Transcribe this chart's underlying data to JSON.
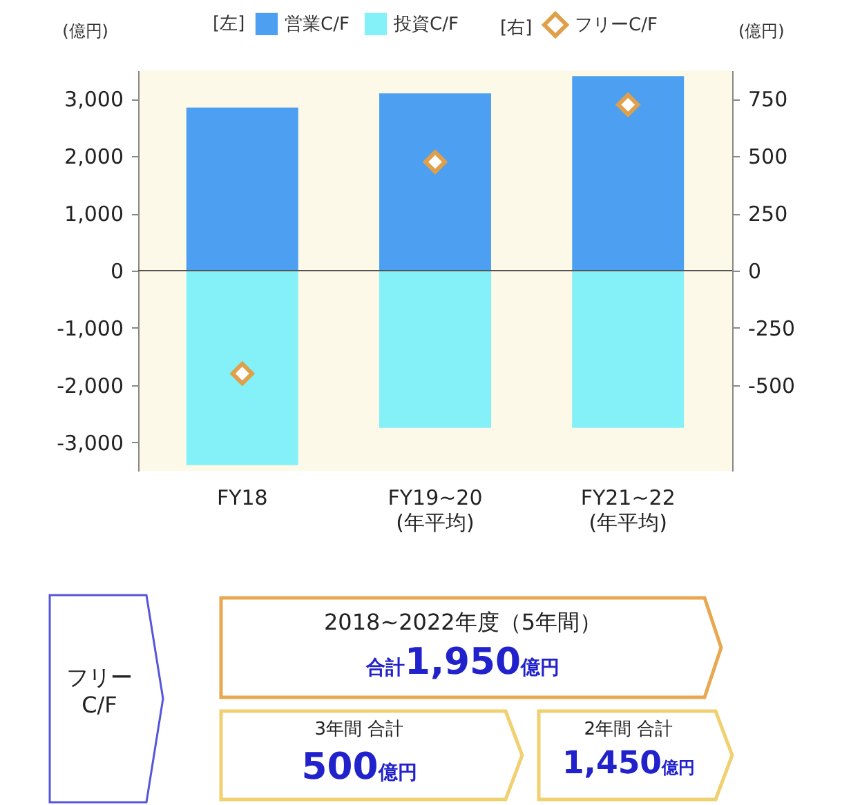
{
  "chart_data": {
    "type": "bar",
    "stacked": true,
    "ylabel": "(億円)",
    "y2label": "(億円)",
    "categories": [
      "FY18",
      "FY19~20\n(年平均)",
      "FY21~22\n(年平均)"
    ],
    "series": [
      {
        "name": "営業C/F",
        "color": "#4d9ff2",
        "values": [
          2850,
          3100,
          3400
        ]
      },
      {
        "name": "投資C/F",
        "color": "#84f0f7",
        "values": [
          -3400,
          -2750,
          -2750
        ]
      },
      {
        "name": "フリーC/F",
        "type": "scatter",
        "axis": "y2",
        "marker": "diamond",
        "color": "#e0a04a",
        "values": [
          -450,
          475,
          725
        ]
      }
    ],
    "ylim": [
      -3500,
      3500
    ],
    "yticks": [
      {
        "value": -3000,
        "label": "-3,000"
      },
      {
        "value": -2000,
        "label": "-2,000"
      },
      {
        "value": -1000,
        "label": "-1,000"
      },
      0,
      {
        "value": 1000,
        "label": "1,000"
      },
      {
        "value": 2000,
        "label": "2,000"
      },
      {
        "value": 3000,
        "label": "3,000"
      }
    ],
    "y2lim": [
      -875,
      875
    ],
    "y2ticks": [
      -500,
      -250,
      0,
      250,
      500,
      750
    ],
    "ref_lines": [
      {
        "axis": "y",
        "value": 0,
        "color": "#555555"
      }
    ],
    "legend": "top",
    "grid": false,
    "annotations": [
      "[左]",
      "[右]",
      "フリー\nC/F",
      "2018~2022年度（5年間）",
      "合計1,950億円",
      "3年間 合計",
      "500億円",
      "2年間 合計",
      "1,450億円"
    ]
  }
}
